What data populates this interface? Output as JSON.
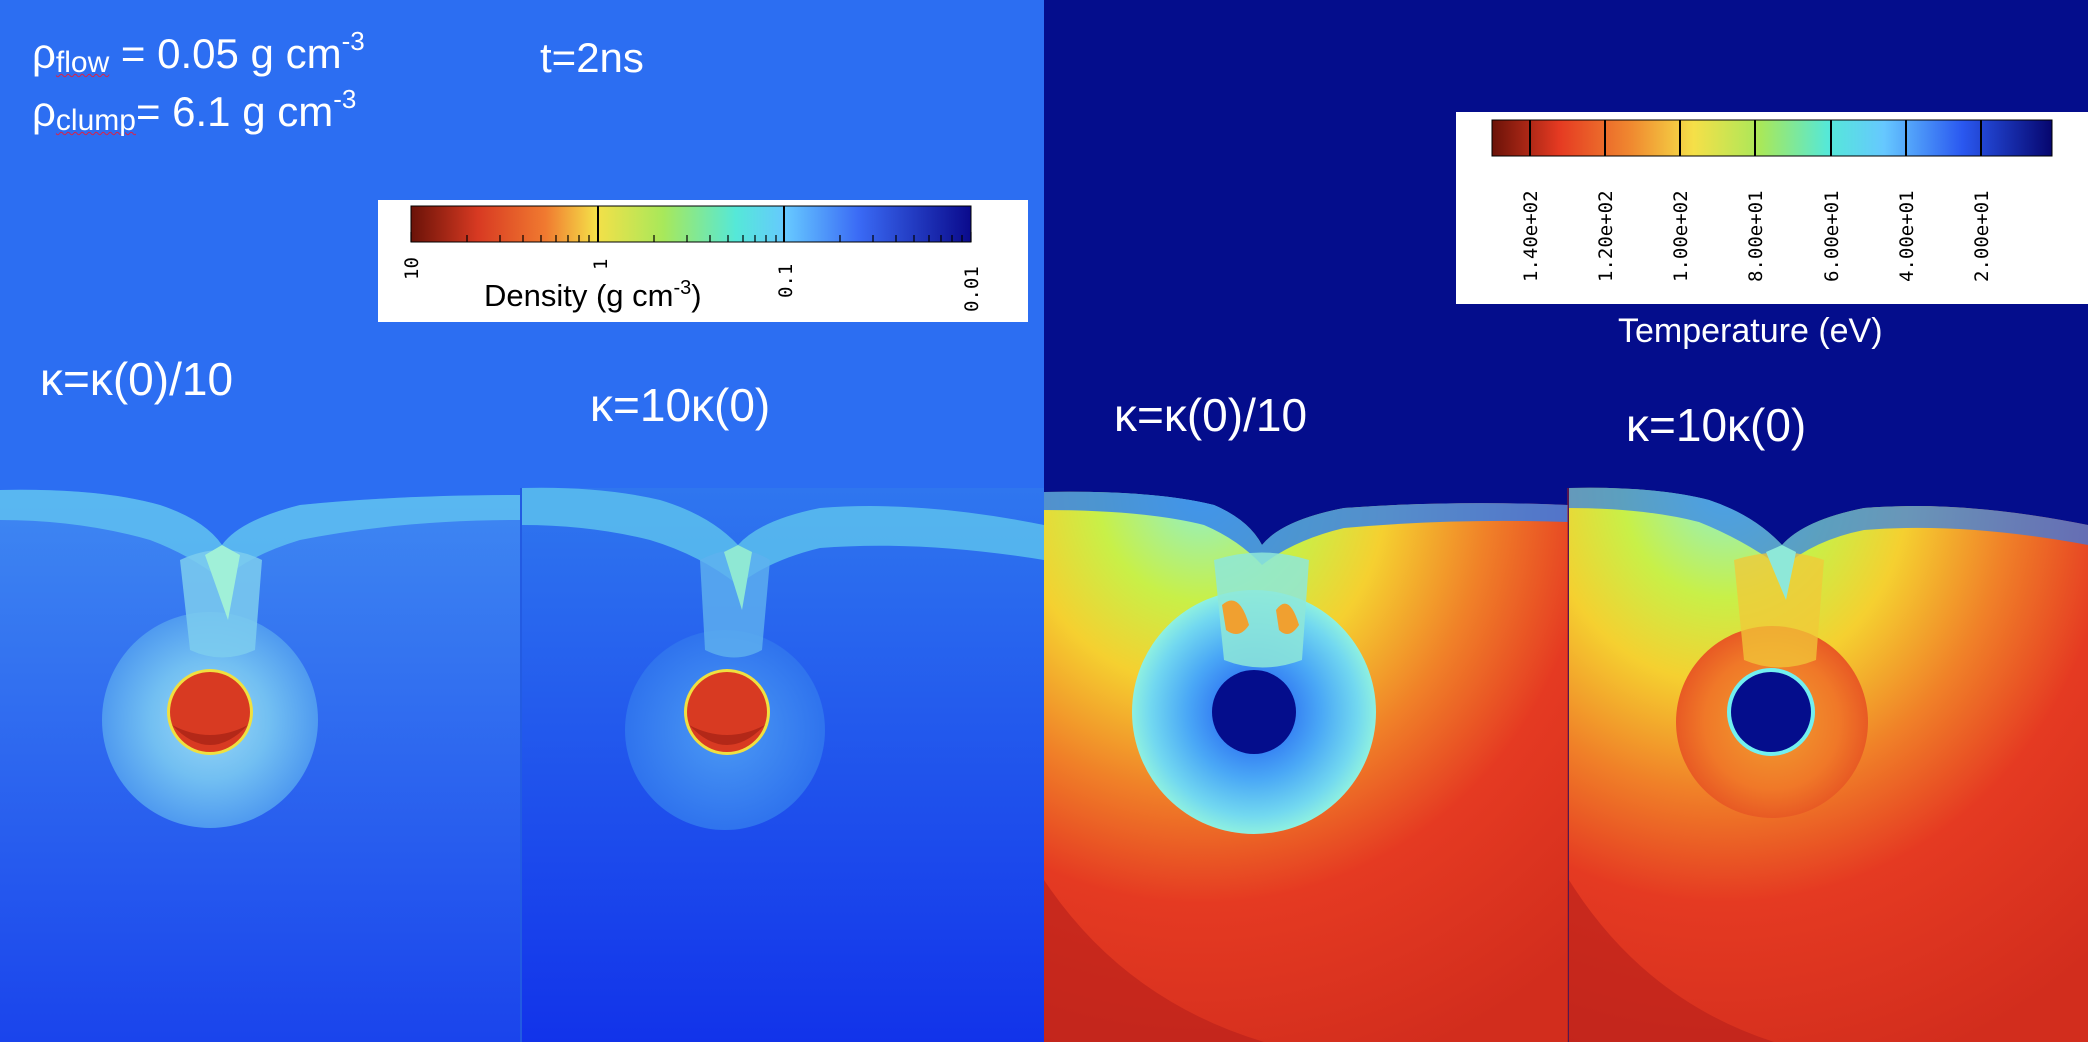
{
  "annotations": {
    "rho_flow": {
      "symbol": "ρ",
      "sub": "flow",
      "text": " = 0.05 g cm",
      "sup": "-3"
    },
    "rho_clump": {
      "symbol": "ρ",
      "sub": "clump",
      "text": "= 6.1 g cm",
      "sup": "-3"
    },
    "time": "t=2ns"
  },
  "density_colorbar": {
    "caption_main": "Density (g cm",
    "caption_sup": "-3",
    "caption_end": ")",
    "tick_labels": [
      "10",
      "1",
      "0.1",
      "0.01"
    ]
  },
  "temperature_colorbar": {
    "caption": "Temperature (eV)",
    "tick_labels": [
      "1.40e+02",
      "1.20e+02",
      "1.00e+02",
      "8.00e+01",
      "6.00e+01",
      "4.00e+01",
      "2.00e+01"
    ]
  },
  "panels": {
    "density_low": {
      "label": "κ=κ(0)/10"
    },
    "density_high": {
      "label": "κ=10κ(0)"
    },
    "temperature_low": {
      "label": "κ=κ(0)/10"
    },
    "temperature_high": {
      "label": "κ=10κ(0)"
    }
  },
  "colors": {
    "density_background": "#2c6ef2",
    "temperature_background": "#040d8c",
    "clump": "#d83a22",
    "shocked_cyan": "#6ee6e6",
    "hot_red": "#e53a22"
  }
}
